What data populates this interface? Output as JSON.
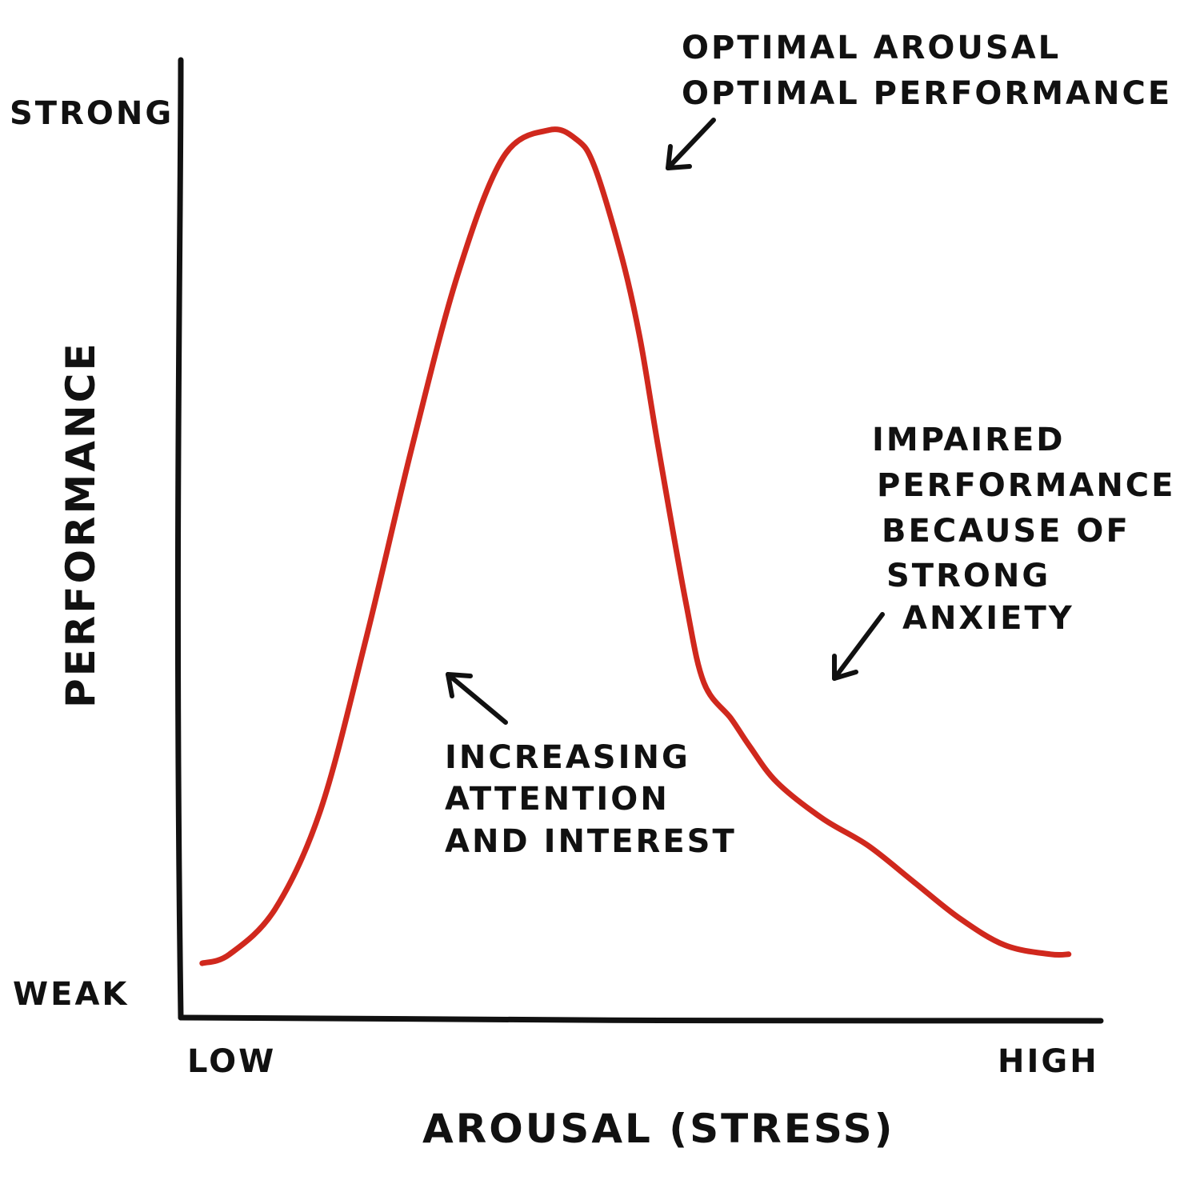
{
  "chart_data": {
    "type": "line",
    "title": "",
    "xlabel": "AROUSAL (STRESS)",
    "ylabel": "PERFORMANCE",
    "x_tick_labels": [
      "LOW",
      "HIGH"
    ],
    "y_tick_labels": [
      "STRONG",
      "WEAK"
    ],
    "xlim": [
      0,
      1
    ],
    "ylim": [
      0,
      1
    ],
    "grid": false,
    "legend": "none",
    "series": [
      {
        "color": "#d0281d",
        "x": [
          0.02,
          0.05,
          0.1,
          0.15,
          0.2,
          0.25,
          0.3,
          0.35,
          0.4,
          0.43,
          0.45,
          0.48,
          0.5,
          0.52,
          0.55,
          0.57,
          0.6,
          0.62,
          0.65,
          0.7,
          0.75,
          0.8,
          0.85,
          0.9,
          0.95,
          0.97
        ],
        "y": [
          0.06,
          0.07,
          0.12,
          0.23,
          0.42,
          0.63,
          0.82,
          0.95,
          0.98,
          0.97,
          0.94,
          0.84,
          0.75,
          0.63,
          0.46,
          0.37,
          0.33,
          0.3,
          0.26,
          0.22,
          0.19,
          0.15,
          0.11,
          0.08,
          0.07,
          0.07
        ]
      }
    ],
    "annotations": [
      {
        "id": "peak",
        "lines": [
          "OPTIMAL AROUSAL",
          "OPTIMAL PERFORMANCE"
        ]
      },
      {
        "id": "rising",
        "lines": [
          "INCREASING",
          "ATTENTION",
          "AND INTEREST"
        ]
      },
      {
        "id": "falling",
        "lines": [
          "IMPAIRED",
          "PERFORMANCE",
          "BECAUSE OF",
          "STRONG",
          "ANXIETY"
        ]
      }
    ],
    "colors": {
      "curve": "#d0281d",
      "ink": "#111111",
      "background": "#ffffff"
    }
  }
}
